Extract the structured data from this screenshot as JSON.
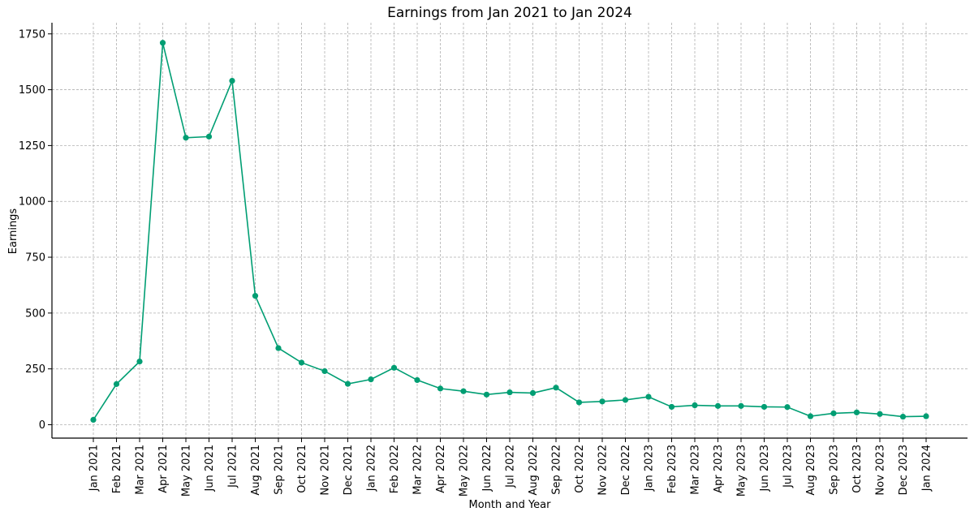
{
  "chart_data": {
    "type": "line",
    "title": "Earnings from Jan 2021 to Jan 2024",
    "xlabel": "Month and Year",
    "ylabel": "Earnings",
    "ylim": [
      -60,
      1800
    ],
    "yticks": [
      0,
      250,
      500,
      750,
      1000,
      1250,
      1500,
      1750
    ],
    "grid": true,
    "legend": "none",
    "color": "#009e73",
    "categories": [
      "Jan 2021",
      "Feb 2021",
      "Mar 2021",
      "Apr 2021",
      "May 2021",
      "Jun 2021",
      "Jul 2021",
      "Aug 2021",
      "Sep 2021",
      "Oct 2021",
      "Nov 2021",
      "Dec 2021",
      "Jan 2022",
      "Feb 2022",
      "Mar 2022",
      "Apr 2022",
      "May 2022",
      "Jun 2022",
      "Jul 2022",
      "Aug 2022",
      "Sep 2022",
      "Oct 2022",
      "Nov 2022",
      "Dec 2022",
      "Jan 2023",
      "Feb 2023",
      "Mar 2023",
      "Apr 2023",
      "May 2023",
      "Jun 2023",
      "Jul 2023",
      "Aug 2023",
      "Sep 2023",
      "Oct 2023",
      "Nov 2023",
      "Dec 2023",
      "Jan 2024"
    ],
    "series": [
      {
        "values": [
          22,
          182,
          283,
          1710,
          1285,
          1290,
          1540,
          577,
          343,
          278,
          240,
          183,
          203,
          255,
          200,
          162,
          150,
          135,
          145,
          142,
          166,
          100,
          104,
          111,
          125,
          80,
          87,
          84,
          84,
          80,
          79,
          38,
          51,
          55,
          48,
          36,
          38
        ]
      }
    ]
  }
}
